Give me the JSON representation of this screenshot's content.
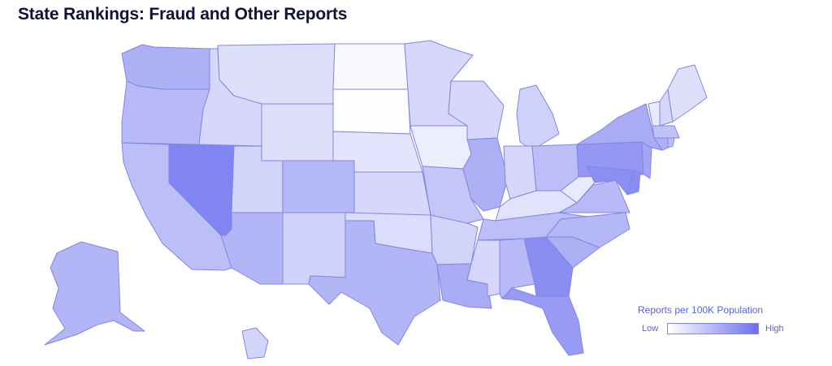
{
  "title": "State Rankings: Fraud and Other Reports",
  "legend": {
    "title": "Reports per 100K Population",
    "low_label": "Low",
    "high_label": "High",
    "low_color": "#ffffff",
    "high_color": "#6b70ee"
  },
  "states": {
    "WA": 0.55,
    "OR": 0.48,
    "CA": 0.45,
    "NV": 0.85,
    "ID": 0.28,
    "MT": 0.22,
    "WY": 0.22,
    "UT": 0.3,
    "AZ": 0.52,
    "CO": 0.5,
    "NM": 0.32,
    "ND": 0.04,
    "SD": 0.01,
    "NE": 0.18,
    "KS": 0.28,
    "OK": 0.24,
    "TX": 0.52,
    "MN": 0.28,
    "IA": 0.12,
    "MO": 0.4,
    "AR": 0.3,
    "LA": 0.58,
    "WI": 0.28,
    "IL": 0.55,
    "MI": 0.32,
    "IN": 0.28,
    "OH": 0.45,
    "KY": 0.2,
    "TN": 0.45,
    "MS": 0.28,
    "AL": 0.48,
    "GA": 0.8,
    "FL": 0.7,
    "SC": 0.55,
    "NC": 0.5,
    "VA": 0.48,
    "WV": 0.15,
    "PA": 0.72,
    "NY": 0.58,
    "ME": 0.22,
    "VT": 0.15,
    "NH": 0.28,
    "MA": 0.42,
    "RI": 0.45,
    "CT": 0.55,
    "NJ": 0.62,
    "DE": 0.8,
    "MD": 0.78,
    "AK": 0.52,
    "HI": 0.3
  }
}
